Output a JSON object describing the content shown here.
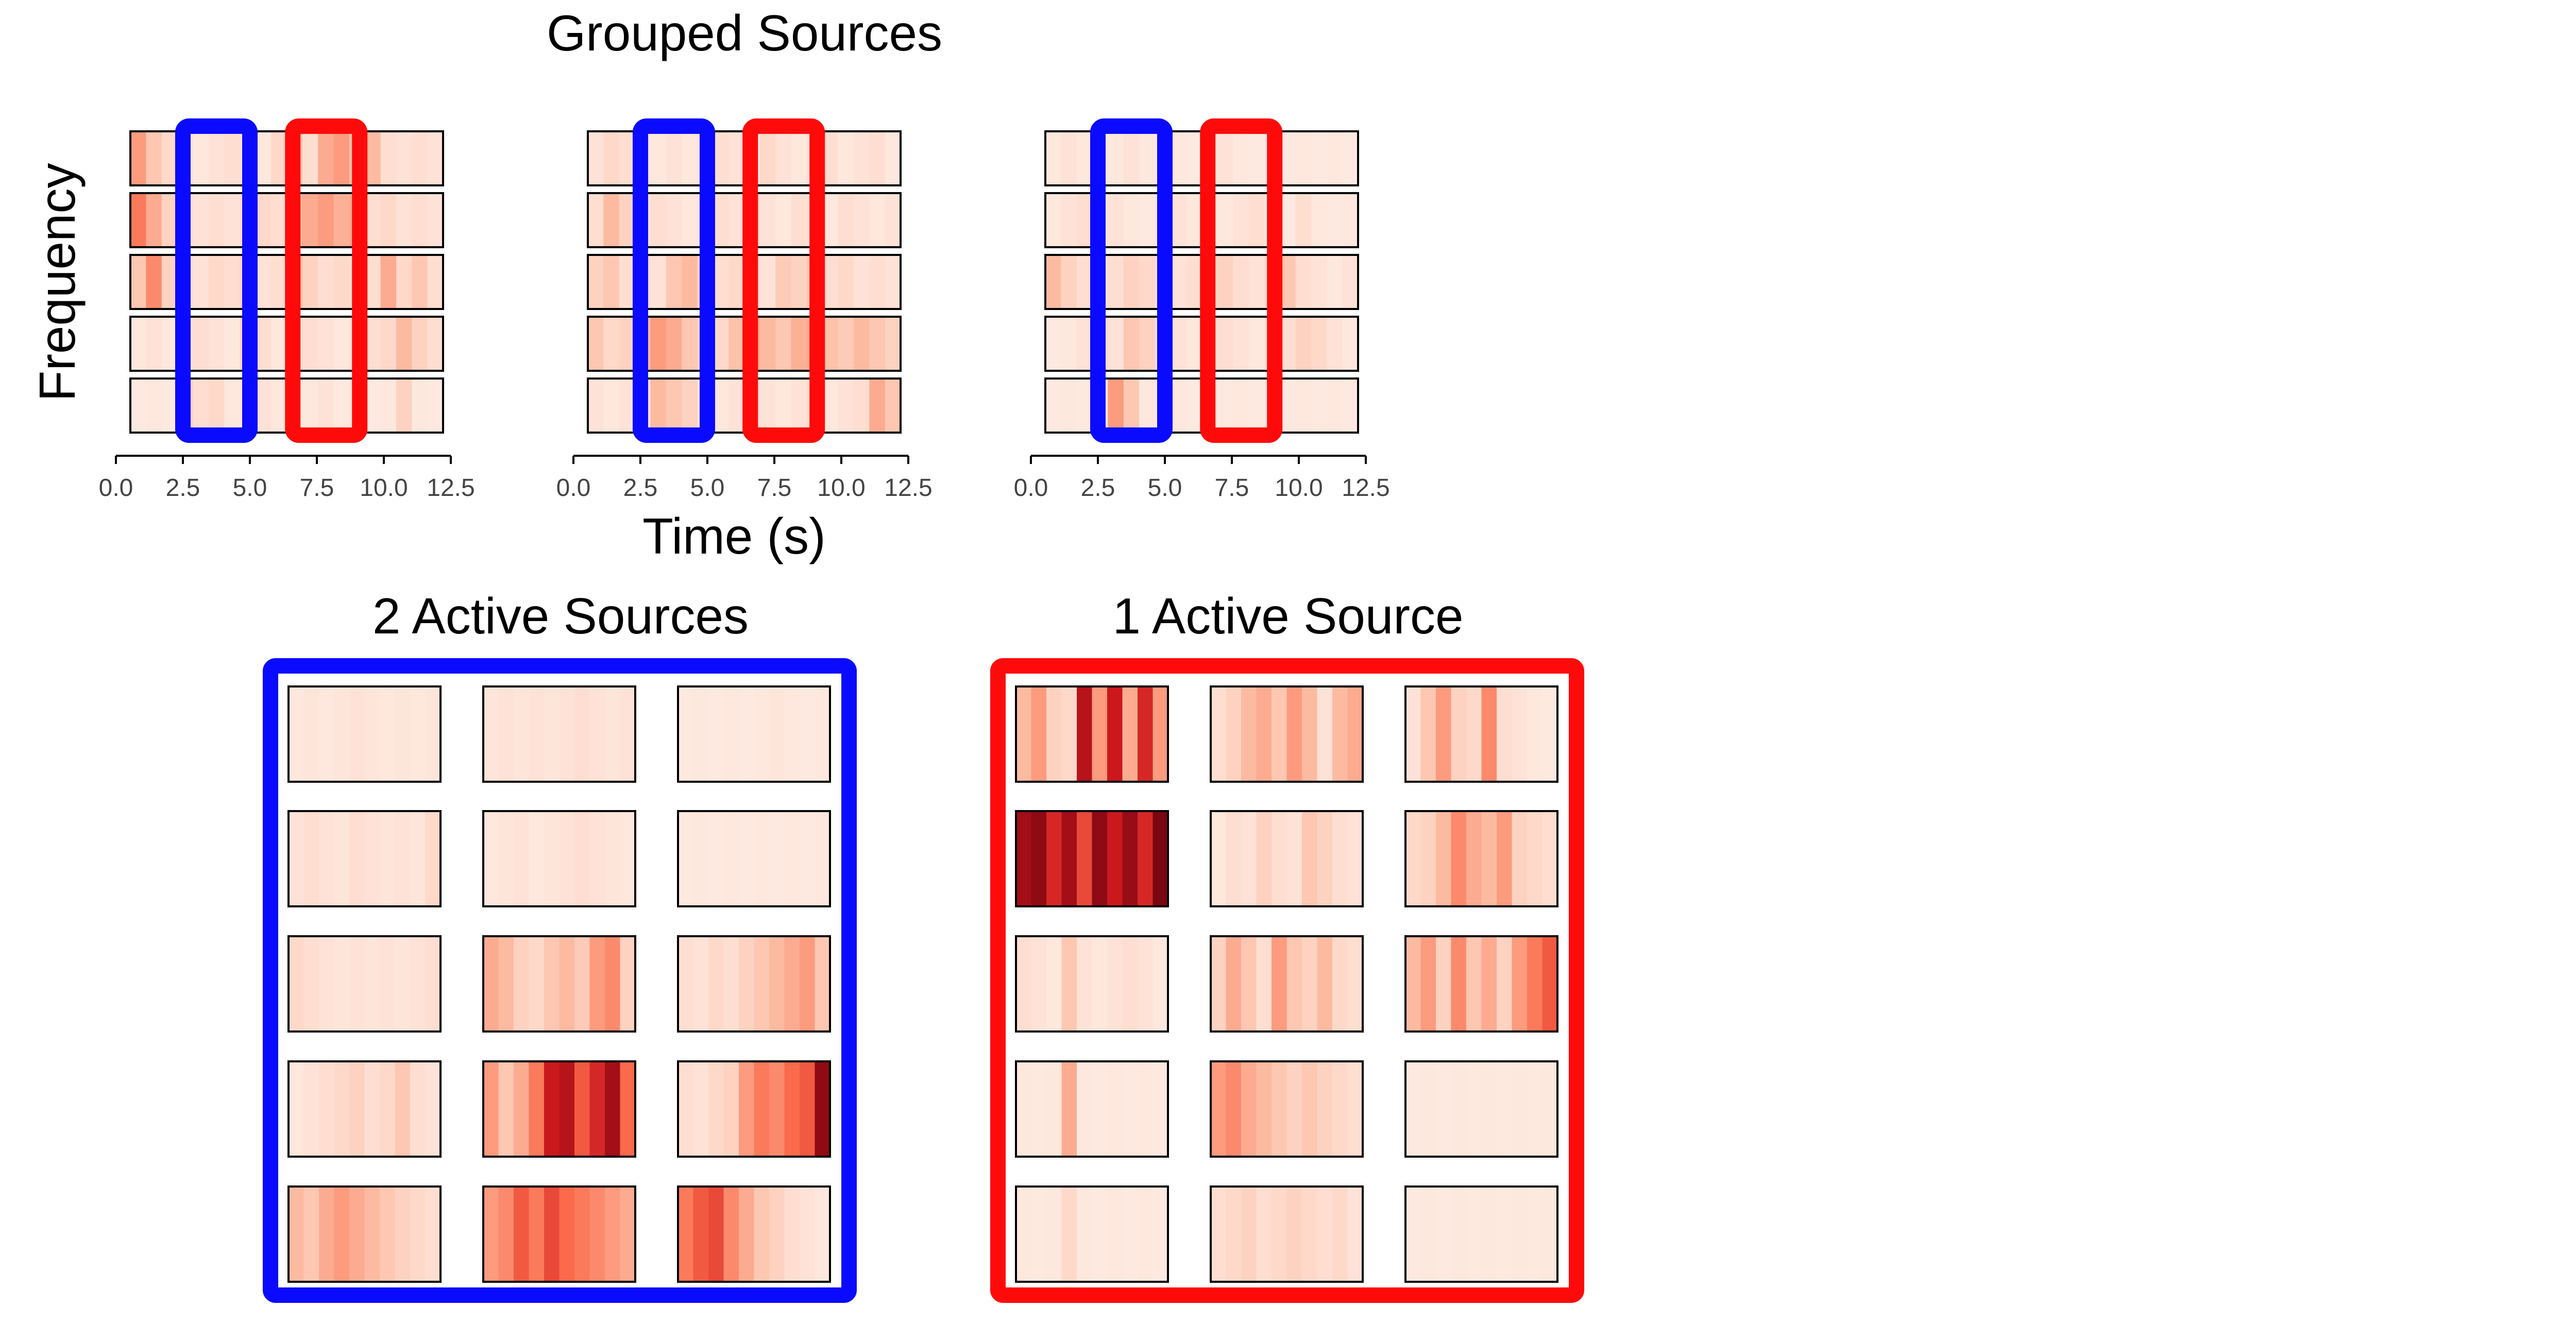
{
  "chart_data": {
    "type": "heatmap",
    "title": "Grouped Sources",
    "ylabel": "Frequency",
    "xlabel": "Time (s)",
    "xticks": [
      "0.0",
      "2.5",
      "5.0",
      "7.5",
      "10.0",
      "12.5"
    ],
    "xlim": [
      0,
      12.5
    ],
    "colormap": "Reds",
    "colors": {
      "two_active": "#0a0aff",
      "one_active": "#ff0a0a"
    },
    "highlight_windows": [
      {
        "group": "two_active",
        "x_range": [
          2.5,
          5.0
        ]
      },
      {
        "group": "one_active",
        "x_range": [
          6.6,
          9.1
        ]
      }
    ],
    "grouped_sources": [
      {
        "rows": [
          [
            0.35,
            0.2,
            0.12,
            0.08,
            0.06,
            0.08,
            0.1,
            0.08,
            0.06,
            0.12,
            0.22,
            0.1,
            0.3,
            0.35,
            0.22,
            0.25,
            0.1,
            0.08,
            0.1,
            0.08
          ],
          [
            0.45,
            0.3,
            0.15,
            0.1,
            0.08,
            0.1,
            0.08,
            0.1,
            0.12,
            0.1,
            0.25,
            0.3,
            0.35,
            0.28,
            0.3,
            0.1,
            0.12,
            0.08,
            0.1,
            0.08
          ],
          [
            0.2,
            0.4,
            0.15,
            0.1,
            0.08,
            0.12,
            0.1,
            0.15,
            0.08,
            0.1,
            0.25,
            0.15,
            0.1,
            0.12,
            0.1,
            0.1,
            0.3,
            0.12,
            0.2,
            0.1
          ],
          [
            0.06,
            0.08,
            0.06,
            0.08,
            0.1,
            0.08,
            0.06,
            0.15,
            0.1,
            0.06,
            0.08,
            0.1,
            0.08,
            0.06,
            0.08,
            0.1,
            0.12,
            0.25,
            0.15,
            0.1
          ],
          [
            0.05,
            0.06,
            0.05,
            0.15,
            0.1,
            0.12,
            0.06,
            0.05,
            0.08,
            0.06,
            0.05,
            0.06,
            0.08,
            0.05,
            0.06,
            0.05,
            0.06,
            0.15,
            0.06,
            0.05
          ]
        ]
      },
      {
        "rows": [
          [
            0.08,
            0.12,
            0.1,
            0.08,
            0.06,
            0.08,
            0.06,
            0.08,
            0.1,
            0.08,
            0.06,
            0.12,
            0.08,
            0.06,
            0.08,
            0.1,
            0.06,
            0.08,
            0.1,
            0.06
          ],
          [
            0.1,
            0.25,
            0.15,
            0.08,
            0.1,
            0.08,
            0.06,
            0.08,
            0.1,
            0.08,
            0.12,
            0.08,
            0.06,
            0.1,
            0.08,
            0.06,
            0.1,
            0.08,
            0.06,
            0.08
          ],
          [
            0.15,
            0.2,
            0.1,
            0.12,
            0.08,
            0.2,
            0.25,
            0.15,
            0.1,
            0.12,
            0.1,
            0.08,
            0.18,
            0.15,
            0.2,
            0.1,
            0.12,
            0.08,
            0.1,
            0.08
          ],
          [
            0.2,
            0.12,
            0.15,
            0.25,
            0.35,
            0.3,
            0.2,
            0.15,
            0.12,
            0.22,
            0.3,
            0.25,
            0.2,
            0.28,
            0.3,
            0.22,
            0.18,
            0.25,
            0.2,
            0.15
          ],
          [
            0.08,
            0.06,
            0.08,
            0.1,
            0.25,
            0.2,
            0.15,
            0.08,
            0.06,
            0.08,
            0.1,
            0.08,
            0.06,
            0.08,
            0.1,
            0.06,
            0.08,
            0.1,
            0.3,
            0.2
          ]
        ]
      },
      {
        "rows": [
          [
            0.06,
            0.08,
            0.06,
            0.05,
            0.06,
            0.08,
            0.06,
            0.05,
            0.06,
            0.05,
            0.06,
            0.08,
            0.06,
            0.05,
            0.06,
            0.05,
            0.06,
            0.05,
            0.06,
            0.05
          ],
          [
            0.06,
            0.08,
            0.1,
            0.06,
            0.08,
            0.06,
            0.05,
            0.06,
            0.08,
            0.06,
            0.05,
            0.06,
            0.08,
            0.1,
            0.06,
            0.05,
            0.1,
            0.06,
            0.05,
            0.06
          ],
          [
            0.25,
            0.15,
            0.1,
            0.08,
            0.1,
            0.15,
            0.12,
            0.1,
            0.08,
            0.1,
            0.12,
            0.15,
            0.1,
            0.08,
            0.1,
            0.2,
            0.1,
            0.08,
            0.06,
            0.08
          ],
          [
            0.05,
            0.06,
            0.08,
            0.1,
            0.08,
            0.2,
            0.15,
            0.1,
            0.08,
            0.06,
            0.08,
            0.1,
            0.08,
            0.06,
            0.08,
            0.1,
            0.15,
            0.12,
            0.08,
            0.06
          ],
          [
            0.05,
            0.06,
            0.05,
            0.06,
            0.35,
            0.2,
            0.06,
            0.05,
            0.06,
            0.05,
            0.06,
            0.05,
            0.06,
            0.05,
            0.06,
            0.05,
            0.06,
            0.05,
            0.06,
            0.05
          ]
        ]
      }
    ],
    "panels": [
      {
        "title": "2 Active Sources",
        "color": "#0a0aff",
        "cells": [
          [
            [
              0.06,
              0.07,
              0.06,
              0.07,
              0.08,
              0.07,
              0.06,
              0.07,
              0.06,
              0.07
            ],
            [
              0.07,
              0.08,
              0.07,
              0.08,
              0.07,
              0.08,
              0.1,
              0.08,
              0.07,
              0.08
            ],
            [
              0.05,
              0.06,
              0.05,
              0.06,
              0.05,
              0.06,
              0.07,
              0.06,
              0.05,
              0.06
            ]
          ],
          [
            [
              0.08,
              0.1,
              0.08,
              0.07,
              0.1,
              0.08,
              0.07,
              0.08,
              0.07,
              0.12
            ],
            [
              0.06,
              0.07,
              0.08,
              0.06,
              0.07,
              0.08,
              0.1,
              0.08,
              0.07,
              0.06
            ],
            [
              0.05,
              0.06,
              0.05,
              0.06,
              0.05,
              0.06,
              0.05,
              0.06,
              0.05,
              0.06
            ]
          ],
          [
            [
              0.12,
              0.1,
              0.08,
              0.07,
              0.08,
              0.07,
              0.08,
              0.07,
              0.08,
              0.1
            ],
            [
              0.3,
              0.25,
              0.15,
              0.12,
              0.2,
              0.25,
              0.18,
              0.35,
              0.4,
              0.15
            ],
            [
              0.1,
              0.08,
              0.12,
              0.1,
              0.15,
              0.2,
              0.25,
              0.3,
              0.35,
              0.2
            ]
          ],
          [
            [
              0.06,
              0.08,
              0.1,
              0.12,
              0.15,
              0.1,
              0.12,
              0.2,
              0.1,
              0.08
            ],
            [
              0.35,
              0.2,
              0.3,
              0.45,
              0.75,
              0.8,
              0.55,
              0.7,
              0.85,
              0.5
            ],
            [
              0.1,
              0.08,
              0.12,
              0.15,
              0.35,
              0.45,
              0.4,
              0.5,
              0.55,
              0.9
            ]
          ],
          [
            [
              0.25,
              0.2,
              0.3,
              0.35,
              0.3,
              0.25,
              0.2,
              0.15,
              0.12,
              0.1
            ],
            [
              0.35,
              0.4,
              0.55,
              0.45,
              0.6,
              0.5,
              0.45,
              0.4,
              0.35,
              0.3
            ],
            [
              0.45,
              0.55,
              0.6,
              0.4,
              0.3,
              0.2,
              0.15,
              0.1,
              0.08,
              0.06
            ]
          ]
        ]
      },
      {
        "title": "1 Active Source",
        "color": "#ff0a0a",
        "cells": [
          [
            [
              0.25,
              0.35,
              0.15,
              0.12,
              0.8,
              0.35,
              0.75,
              0.3,
              0.7,
              0.35
            ],
            [
              0.1,
              0.15,
              0.25,
              0.3,
              0.2,
              0.35,
              0.25,
              0.08,
              0.25,
              0.3
            ],
            [
              0.08,
              0.2,
              0.35,
              0.15,
              0.12,
              0.4,
              0.1,
              0.08,
              0.06,
              0.05
            ]
          ],
          [
            [
              0.85,
              0.9,
              0.7,
              0.85,
              0.6,
              0.9,
              0.75,
              0.88,
              0.7,
              0.95
            ],
            [
              0.06,
              0.1,
              0.08,
              0.15,
              0.1,
              0.08,
              0.2,
              0.15,
              0.1,
              0.08
            ],
            [
              0.12,
              0.15,
              0.25,
              0.4,
              0.3,
              0.25,
              0.35,
              0.15,
              0.12,
              0.1
            ]
          ],
          [
            [
              0.1,
              0.08,
              0.06,
              0.2,
              0.08,
              0.06,
              0.08,
              0.1,
              0.08,
              0.06
            ],
            [
              0.15,
              0.3,
              0.2,
              0.1,
              0.35,
              0.2,
              0.15,
              0.25,
              0.12,
              0.1
            ],
            [
              0.25,
              0.35,
              0.15,
              0.4,
              0.2,
              0.3,
              0.15,
              0.35,
              0.45,
              0.55
            ]
          ],
          [
            [
              0.06,
              0.05,
              0.06,
              0.3,
              0.06,
              0.05,
              0.06,
              0.05,
              0.06,
              0.05
            ],
            [
              0.35,
              0.4,
              0.3,
              0.25,
              0.2,
              0.15,
              0.2,
              0.15,
              0.12,
              0.1
            ],
            [
              0.05,
              0.06,
              0.05,
              0.06,
              0.05,
              0.06,
              0.05,
              0.06,
              0.05,
              0.06
            ]
          ],
          [
            [
              0.06,
              0.05,
              0.06,
              0.12,
              0.06,
              0.05,
              0.06,
              0.05,
              0.06,
              0.05
            ],
            [
              0.1,
              0.12,
              0.15,
              0.1,
              0.12,
              0.15,
              0.12,
              0.1,
              0.12,
              0.08
            ],
            [
              0.05,
              0.06,
              0.05,
              0.06,
              0.05,
              0.06,
              0.05,
              0.06,
              0.05,
              0.06
            ]
          ]
        ]
      }
    ]
  }
}
